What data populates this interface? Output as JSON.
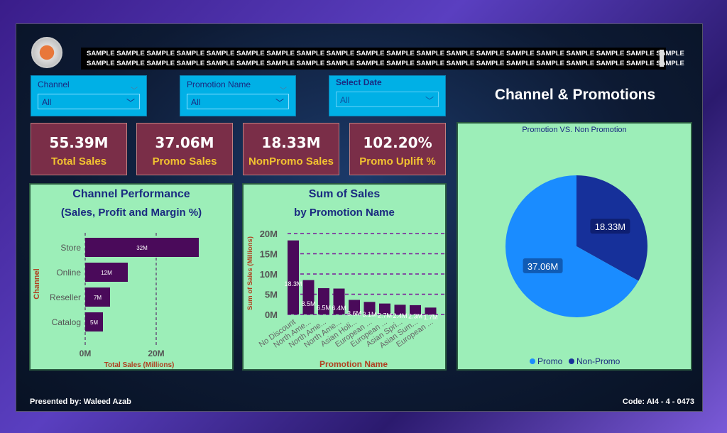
{
  "banner": {
    "line1": "SAMPLE SAMPLE SAMPLE SAMPLE SAMPLE SAMPLE SAMPLE SAMPLE SAMPLE SAMPLE SAMPLE SAMPLE SAMPLE SAMPLE SAMPLE SAMPLE SAMPLE SAMPLE SAMPLE SAMPLE",
    "line2": "SAMPLE SAMPLE SAMPLE SAMPLE SAMPLE SAMPLE SAMPLE SAMPLE SAMPLE SAMPLE SAMPLE SAMPLE SAMPLE SAMPLE SAMPLE SAMPLE SAMPLE SAMPLE SAMPLE SAMPLE"
  },
  "slicers": [
    {
      "label": "Channel",
      "value": "All"
    },
    {
      "label": "Promotion Name",
      "value": "All"
    },
    {
      "label": "Select Date",
      "value": "All"
    }
  ],
  "page_title": "Channel & Promotions",
  "kpis": [
    {
      "value": "55.39M",
      "label": "Total Sales"
    },
    {
      "value": "37.06M",
      "label": "Promo Sales"
    },
    {
      "value": "18.33M",
      "label": "NonPromo Sales"
    },
    {
      "value": "102.20%",
      "label": "Promo Uplift %"
    }
  ],
  "footer": {
    "left": "Presented by: Waleed Azab",
    "right": "Code: AI4 - 4 - 0473"
  },
  "colors": {
    "bar": "#4a0a5a",
    "promo": "#1a8cff",
    "nonpromo": "#16309a",
    "kpi_bg": "#7a2e48",
    "card_bg": "#9ceeb8"
  },
  "chart_data": [
    {
      "type": "bar",
      "orientation": "horizontal",
      "title": "Channel Performance",
      "subtitle": "(Sales, Profit and Margin %)",
      "ylabel": "Channel",
      "xlabel": "Total Sales (Millions)",
      "categories": [
        "Store",
        "Online",
        "Reseller",
        "Catalog"
      ],
      "values": [
        32,
        12,
        7,
        5
      ],
      "labels": [
        "32M",
        "12M",
        "7M",
        "5M"
      ],
      "xticks": [
        "0M",
        "20M"
      ],
      "xlim": [
        0,
        36
      ]
    },
    {
      "type": "bar",
      "title": "Sum of Sales",
      "subtitle": "by Promotion Name",
      "ylabel": "Sum of Sales (Millions)",
      "xlabel": "Promotion Name",
      "categories": [
        "No Discount",
        "North Ame...",
        "North Ame...",
        "North Ame...",
        "Asian Holi...",
        "European ...",
        "European ...",
        "Asian Spri...",
        "Asian Sum...",
        "European ..."
      ],
      "values": [
        18.3,
        8.5,
        6.5,
        6.4,
        3.6,
        3.1,
        2.7,
        2.4,
        2.3,
        1.7
      ],
      "labels": [
        "18.3M",
        "8.5M",
        "6.5M",
        "6.4M",
        "3.6M",
        "3.1M",
        "2.7M",
        "2.4M",
        "2.3M",
        "1.7M"
      ],
      "yticks": [
        "0M",
        "5M",
        "10M",
        "15M",
        "20M"
      ],
      "ylim": [
        0,
        20
      ],
      "grid": true
    },
    {
      "type": "pie",
      "title": "Promotion VS. Non Promotion",
      "categories": [
        "Promo",
        "Non-Promo"
      ],
      "values": [
        37.06,
        18.33
      ],
      "labels": [
        "37.06M",
        "18.33M"
      ],
      "legend": "bottom"
    }
  ]
}
